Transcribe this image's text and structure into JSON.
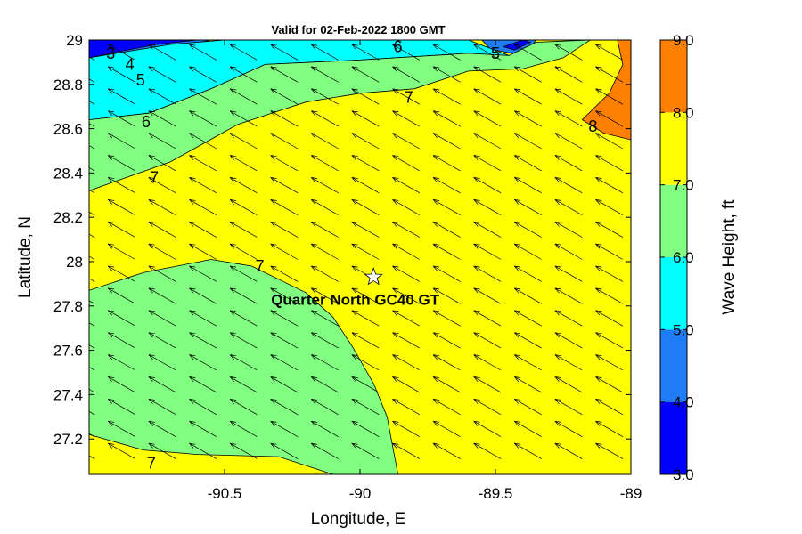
{
  "chart_data": {
    "type": "contour_map",
    "title": "Valid for 02-Feb-2022 1800 GMT",
    "xlabel": "Longitude, E",
    "ylabel": "Latitude, N",
    "xlim": [
      -91,
      -89
    ],
    "ylim": [
      27.04,
      29
    ],
    "x_ticks": [
      -90.5,
      -90,
      -89.5,
      -89
    ],
    "x_tick_labels": [
      "-90.5",
      "-90",
      "-89.5",
      "-89"
    ],
    "y_ticks": [
      27.2,
      27.4,
      27.6,
      27.8,
      28,
      28.2,
      28.4,
      28.6,
      28.8,
      29
    ],
    "y_tick_labels": [
      "27.2",
      "27.4",
      "27.6",
      "27.8",
      "28",
      "28.2",
      "28.4",
      "28.6",
      "28.8",
      "29"
    ],
    "colorbar": {
      "label": "Wave Height, ft",
      "min": 3.0,
      "max": 9.0,
      "tick_labels": [
        "3.0",
        "4.0",
        "5.0",
        "6.0",
        "7.0",
        "8.0",
        "9.0"
      ],
      "bands": [
        {
          "from": 3,
          "to": 4,
          "color": "#0000ff"
        },
        {
          "from": 4,
          "to": 5,
          "color": "#1e7cf5"
        },
        {
          "from": 5,
          "to": 6,
          "color": "#00ffff"
        },
        {
          "from": 6,
          "to": 7,
          "color": "#80ff80"
        },
        {
          "from": 7,
          "to": 8,
          "color": "#ffff00"
        },
        {
          "from": 8,
          "to": 9,
          "color": "#ff8000"
        }
      ]
    },
    "regions": [
      {
        "level": "4-5",
        "color": "#1e7cf5",
        "polygon": [
          [
            -91,
            29
          ],
          [
            -90.55,
            29
          ],
          [
            -90.7,
            28.96
          ],
          [
            -90.85,
            28.92
          ],
          [
            -91,
            28.88
          ]
        ]
      },
      {
        "level": "3-4",
        "color": "#0000ff",
        "polygon": [
          [
            -91,
            29
          ],
          [
            -90.6,
            29
          ],
          [
            -90.75,
            28.98
          ],
          [
            -90.88,
            28.95
          ],
          [
            -91,
            28.92
          ]
        ]
      },
      {
        "level": "4-5",
        "color": "#1e7cf5",
        "polygon": [
          [
            -89.55,
            29
          ],
          [
            -89.35,
            29
          ],
          [
            -89.38,
            28.95
          ],
          [
            -89.44,
            28.94
          ],
          [
            -89.52,
            28.96
          ]
        ]
      },
      {
        "level": "3-4",
        "color": "#0000ff",
        "polygon": [
          [
            -89.47,
            28.97
          ],
          [
            -89.4,
            29
          ],
          [
            -89.37,
            28.99
          ],
          [
            -89.43,
            28.955
          ]
        ]
      },
      {
        "level": "5-6",
        "color": "#00ffff",
        "polygon": [
          [
            -91,
            28.92
          ],
          [
            -90.85,
            28.95
          ],
          [
            -90.7,
            28.98
          ],
          [
            -90.5,
            29
          ],
          [
            -89.6,
            29
          ],
          [
            -89.45,
            28.93
          ],
          [
            -89.6,
            28.94
          ],
          [
            -90,
            28.91
          ],
          [
            -90.35,
            28.89
          ],
          [
            -90.55,
            28.78
          ],
          [
            -90.78,
            28.67
          ],
          [
            -91,
            28.64
          ]
        ]
      },
      {
        "level": "6-7",
        "color": "#80ff80",
        "polygon": [
          [
            -91,
            28.64
          ],
          [
            -90.78,
            28.67
          ],
          [
            -90.55,
            28.78
          ],
          [
            -90.35,
            28.89
          ],
          [
            -90,
            28.91
          ],
          [
            -89.6,
            28.94
          ],
          [
            -89.45,
            28.93
          ],
          [
            -89.35,
            28.99
          ],
          [
            -89.15,
            29
          ],
          [
            -89.25,
            28.92
          ],
          [
            -89.4,
            28.87
          ],
          [
            -89.6,
            28.86
          ],
          [
            -89.8,
            28.78
          ],
          [
            -90,
            28.76
          ],
          [
            -90.2,
            28.72
          ],
          [
            -90.45,
            28.62
          ],
          [
            -90.7,
            28.45
          ],
          [
            -91,
            28.32
          ]
        ]
      },
      {
        "level": "6-7",
        "color": "#80ff80",
        "polygon": [
          [
            -91,
            27.87
          ],
          [
            -90.8,
            27.95
          ],
          [
            -90.55,
            28.01
          ],
          [
            -90.4,
            27.98
          ],
          [
            -90.2,
            27.86
          ],
          [
            -90.1,
            27.75
          ],
          [
            -90.03,
            27.62
          ],
          [
            -89.95,
            27.45
          ],
          [
            -89.9,
            27.3
          ],
          [
            -89.86,
            27.04
          ],
          [
            -90.1,
            27.04
          ],
          [
            -90.3,
            27.12
          ],
          [
            -90.6,
            27.13
          ],
          [
            -90.8,
            27.15
          ],
          [
            -91,
            27.22
          ]
        ]
      },
      {
        "level": "8-9",
        "color": "#ff8000",
        "polygon": [
          [
            -89.05,
            29
          ],
          [
            -89,
            29
          ],
          [
            -89,
            28.55
          ],
          [
            -89.1,
            28.58
          ],
          [
            -89.18,
            28.64
          ],
          [
            -89.08,
            28.76
          ],
          [
            -89.03,
            28.89
          ]
        ]
      }
    ],
    "contour_labels": [
      {
        "text": "3",
        "lon": -90.92,
        "lat": 28.94
      },
      {
        "text": "4",
        "lon": -90.85,
        "lat": 28.89
      },
      {
        "text": "5",
        "lon": -90.81,
        "lat": 28.82
      },
      {
        "text": "6",
        "lon": -90.79,
        "lat": 28.63
      },
      {
        "text": "7",
        "lon": -90.76,
        "lat": 28.38
      },
      {
        "text": "6",
        "lon": -89.86,
        "lat": 28.97
      },
      {
        "text": "5",
        "lon": -89.5,
        "lat": 28.94
      },
      {
        "text": "7",
        "lon": -89.82,
        "lat": 28.74
      },
      {
        "text": "8",
        "lon": -89.14,
        "lat": 28.61
      },
      {
        "text": "7",
        "lon": -90.37,
        "lat": 27.98
      },
      {
        "text": "7",
        "lon": -90.77,
        "lat": 27.09
      }
    ],
    "site": {
      "name": "Quarter North GC40 GT",
      "lon": -89.95,
      "lat": 27.93,
      "marker": "star"
    },
    "vectors": {
      "description": "wave direction arrows on regular grid",
      "lon_start": -90.98,
      "lon_step": 0.15,
      "lat_start": 27.11,
      "lat_step": 0.1,
      "du_deg": -0.1,
      "dv_deg": 0.07
    }
  }
}
